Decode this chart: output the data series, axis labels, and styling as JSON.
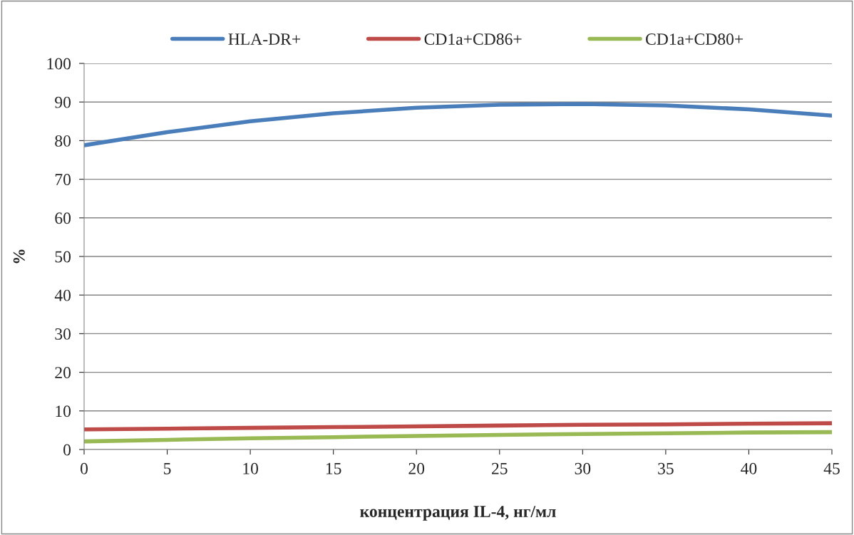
{
  "chart_data": {
    "type": "line",
    "xlabel": "концентрация IL-4, нг/мл",
    "ylabel": "%",
    "x": [
      0,
      5,
      10,
      15,
      20,
      25,
      30,
      35,
      40,
      45
    ],
    "series": [
      {
        "name": "HLA-DR+",
        "color": "#4a7ebb",
        "values": [
          78.8,
          82.2,
          85.0,
          87.1,
          88.5,
          89.3,
          89.5,
          89.1,
          88.1,
          86.5
        ]
      },
      {
        "name": "CD1a+CD86+",
        "color": "#be4b48",
        "values": [
          5.2,
          5.4,
          5.6,
          5.8,
          6.0,
          6.2,
          6.4,
          6.5,
          6.7,
          6.8
        ]
      },
      {
        "name": "CD1a+CD80+",
        "color": "#98b954",
        "values": [
          2.1,
          2.5,
          2.9,
          3.2,
          3.5,
          3.8,
          4.0,
          4.2,
          4.4,
          4.5
        ]
      }
    ],
    "xlim": [
      0,
      45
    ],
    "xticks": [
      0,
      5,
      10,
      15,
      20,
      25,
      30,
      35,
      40,
      45
    ],
    "ylim": [
      0,
      100
    ],
    "yticks": [
      0,
      10,
      20,
      30,
      40,
      50,
      60,
      70,
      80,
      90,
      100
    ],
    "grid": "y",
    "legend": "top",
    "marker": "none",
    "line_style": "solid"
  }
}
